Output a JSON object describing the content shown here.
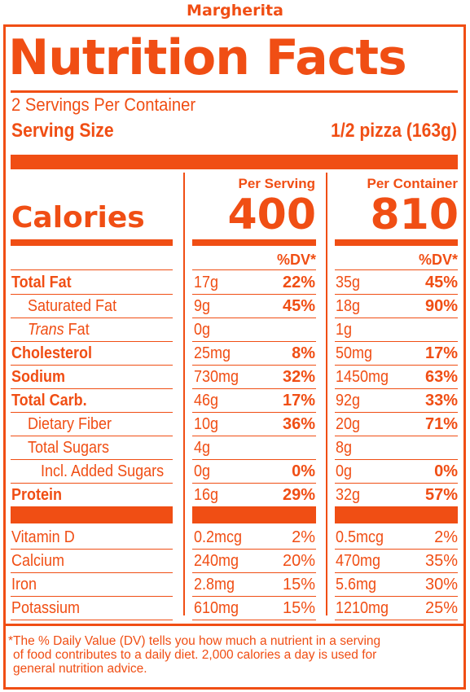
{
  "product_name": "Margherita",
  "title": "Nutrition Facts",
  "servings_per_container": "2 Servings Per Container",
  "serving_size_label": "Serving Size",
  "serving_size_value": "1/2 pizza (163g)",
  "columns": {
    "per_serving_label": "Per Serving",
    "per_container_label": "Per Container"
  },
  "calories": {
    "label": "Calories",
    "per_serving": "400",
    "per_container": "810"
  },
  "dv_header": "%DV*",
  "nutrients": [
    {
      "name": "Total Fat",
      "style": "bold",
      "serving_amount": "17g",
      "serving_dv": "22%",
      "container_amount": "35g",
      "container_dv": "45%"
    },
    {
      "name": "Saturated Fat",
      "style": "indent",
      "serving_amount": "9g",
      "serving_dv": "45%",
      "container_amount": "18g",
      "container_dv": "90%"
    },
    {
      "name_prefix": "Trans",
      "name": "Fat",
      "style": "indent",
      "serving_amount": "0g",
      "serving_dv": "",
      "container_amount": "1g",
      "container_dv": ""
    },
    {
      "name": "Cholesterol",
      "style": "bold",
      "serving_amount": "25mg",
      "serving_dv": "8%",
      "container_amount": "50mg",
      "container_dv": "17%"
    },
    {
      "name": "Sodium",
      "style": "bold",
      "serving_amount": "730mg",
      "serving_dv": "32%",
      "container_amount": "1450mg",
      "container_dv": "63%"
    },
    {
      "name": "Total Carb.",
      "style": "bold",
      "serving_amount": "46g",
      "serving_dv": "17%",
      "container_amount": "92g",
      "container_dv": "33%"
    },
    {
      "name": "Dietary Fiber",
      "style": "indent",
      "serving_amount": "10g",
      "serving_dv": "36%",
      "container_amount": "20g",
      "container_dv": "71%"
    },
    {
      "name": "Total Sugars",
      "style": "indent",
      "serving_amount": "4g",
      "serving_dv": "",
      "container_amount": "8g",
      "container_dv": ""
    },
    {
      "name": "Incl. Added Sugars",
      "style": "indent2",
      "serving_amount": "0g",
      "serving_dv": "0%",
      "container_amount": "0g",
      "container_dv": "0%"
    },
    {
      "name": "Protein",
      "style": "bold",
      "serving_amount": "16g",
      "serving_dv": "29%",
      "container_amount": "32g",
      "container_dv": "57%"
    }
  ],
  "vitamins": [
    {
      "name": "Vitamin D",
      "serving_amount": "0.2mcg",
      "serving_dv": "2%",
      "container_amount": "0.5mcg",
      "container_dv": "2%"
    },
    {
      "name": "Calcium",
      "serving_amount": "240mg",
      "serving_dv": "20%",
      "container_amount": "470mg",
      "container_dv": "35%"
    },
    {
      "name": "Iron",
      "serving_amount": "2.8mg",
      "serving_dv": "15%",
      "container_amount": "5.6mg",
      "container_dv": "30%"
    },
    {
      "name": "Potassium",
      "serving_amount": "610mg",
      "serving_dv": "15%",
      "container_amount": "1210mg",
      "container_dv": "25%"
    }
  ],
  "footnote": {
    "line1": "*The % Daily Value (DV) tells you how much a nutrient in a serving",
    "line2": "of food contributes to a daily diet. 2,000 calories a day is used for",
    "line3": "general nutrition advice."
  },
  "colors": {
    "accent": "#f04e14",
    "background": "#ffffff"
  }
}
